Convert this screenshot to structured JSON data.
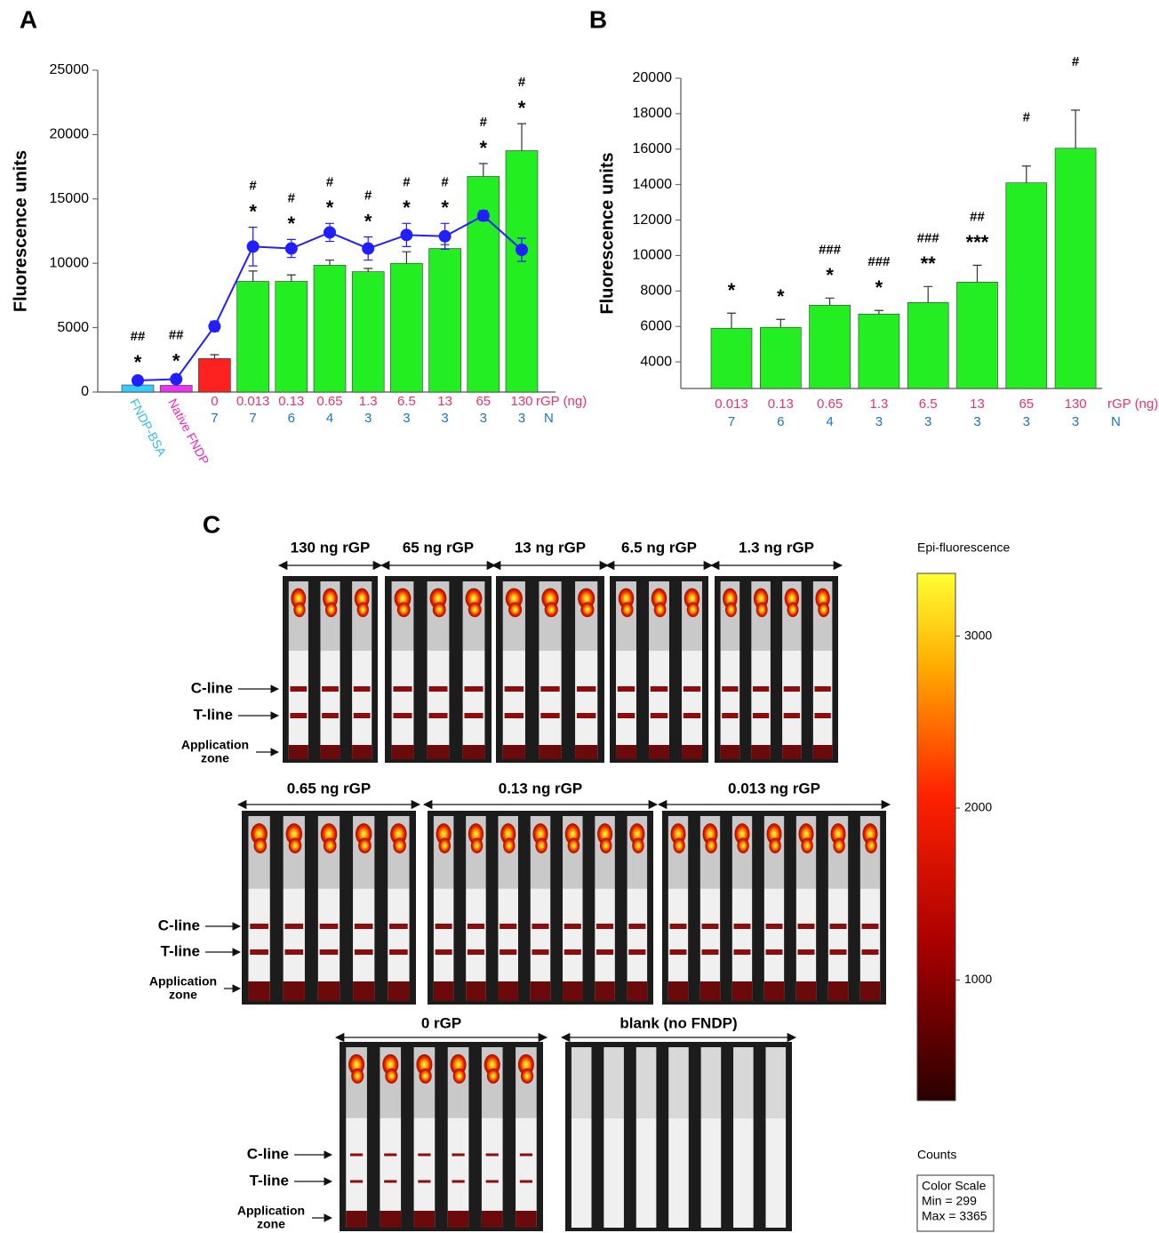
{
  "chart_data": [
    {
      "type": "bar",
      "panel_label": "A",
      "ylabel": "Fluorescence units",
      "categories": [
        "FNDP-BSA",
        "Native FNDP",
        "0",
        "0.013",
        "0.13",
        "0.65",
        "1.3",
        "6.5",
        "13",
        "65",
        "130"
      ],
      "category_colors": [
        "#33bbee",
        "#ee22cc",
        "#e8336b",
        "#e8336b",
        "#e8336b",
        "#e8336b",
        "#e8336b",
        "#e8336b",
        "#e8336b",
        "#e8336b",
        "#e8336b"
      ],
      "x_unit_label": "rGP (ng)",
      "n_label": "N",
      "n_values": [
        null,
        null,
        7,
        7,
        6,
        4,
        3,
        3,
        3,
        3,
        3
      ],
      "n_color": "#1a74c4",
      "series": [
        {
          "type": "bar",
          "colors": [
            "#33ccff",
            "#ee33ee",
            "#ff2020",
            "#22ee22",
            "#22ee22",
            "#22ee22",
            "#22ee22",
            "#22ee22",
            "#22ee22",
            "#22ee22",
            "#22ee22"
          ],
          "values": [
            550,
            520,
            2600,
            8600,
            8600,
            9850,
            9350,
            10000,
            11150,
            16750,
            18750
          ],
          "errors": [
            null,
            null,
            300,
            800,
            500,
            400,
            250,
            900,
            300,
            1000,
            2100
          ]
        },
        {
          "type": "line",
          "color": "#1f1fff",
          "values": [
            900,
            1000,
            5100,
            11300,
            11150,
            12400,
            11150,
            12200,
            12100,
            13700,
            11050
          ],
          "errors": [
            200,
            200,
            400,
            1500,
            700,
            700,
            900,
            900,
            1000,
            400,
            900
          ]
        }
      ],
      "annotations": {
        "stars": [
          "*",
          "*",
          null,
          "*",
          "*",
          "*",
          "*",
          "*",
          "*",
          "*",
          "*"
        ],
        "hashes": [
          "##",
          "##",
          null,
          "#",
          "#",
          "#",
          "#",
          "#",
          "#",
          "#",
          "#"
        ]
      },
      "ylim": [
        0,
        25000
      ],
      "yticks": [
        0,
        5000,
        10000,
        15000,
        20000,
        25000
      ]
    },
    {
      "type": "bar",
      "panel_label": "B",
      "ylabel": "Fluorescence units",
      "categories": [
        "0.013",
        "0.13",
        "0.65",
        "1.3",
        "6.5",
        "13",
        "65",
        "130"
      ],
      "category_colors": [
        "#e8336b",
        "#e8336b",
        "#e8336b",
        "#e8336b",
        "#e8336b",
        "#e8336b",
        "#e8336b",
        "#e8336b"
      ],
      "x_unit_label": "rGP (ng)",
      "n_label": "N",
      "n_values": [
        7,
        6,
        4,
        3,
        3,
        3,
        3,
        3
      ],
      "n_color": "#1a74c4",
      "series": [
        {
          "type": "bar",
          "colors": [
            "#22ee22",
            "#22ee22",
            "#22ee22",
            "#22ee22",
            "#22ee22",
            "#22ee22",
            "#22ee22",
            "#22ee22"
          ],
          "values": [
            5900,
            5950,
            7200,
            6700,
            7350,
            8500,
            14100,
            16050
          ],
          "errors": [
            850,
            450,
            400,
            200,
            900,
            950,
            950,
            2150
          ]
        }
      ],
      "annotations": {
        "stars": [
          "*",
          "*",
          "*",
          "*",
          "**",
          "***",
          null,
          null
        ],
        "hashes": [
          null,
          null,
          "###",
          "###",
          "###",
          "##",
          "#",
          "#"
        ]
      },
      "ylim": [
        2500,
        20000
      ],
      "yticks": [
        4000,
        6000,
        8000,
        10000,
        12000,
        14000,
        16000,
        18000,
        20000
      ]
    }
  ],
  "panel_c": {
    "panel_label": "C",
    "groups": [
      {
        "title": "130 ng rGP"
      },
      {
        "title": "65 ng rGP"
      },
      {
        "title": "13 ng rGP"
      },
      {
        "title": "6.5 ng rGP"
      },
      {
        "title": "1.3 ng rGP"
      },
      {
        "title": "0.65 ng rGP"
      },
      {
        "title": "0.13 ng  rGP"
      },
      {
        "title": "0.013 ng rGP"
      },
      {
        "title": "0 rGP"
      },
      {
        "title": "blank (no FNDP)"
      }
    ],
    "row_labels": [
      {
        "c_line": "C-line",
        "t_line": "T-line",
        "application_zone": [
          "Application",
          "zone"
        ]
      },
      {
        "c_line": "C-line",
        "t_line": "T-line",
        "application_zone": [
          "Application",
          "zone"
        ]
      },
      {
        "c_line": "C-line",
        "t_line": "T-line",
        "application_zone": [
          "Application",
          "zone"
        ]
      }
    ],
    "color_scale": {
      "title": "Epi-fluorescence",
      "unit_label": "Counts",
      "box": [
        "Color Scale",
        "Min = 299",
        "Max = 3365"
      ],
      "clim": [
        299,
        3365
      ],
      "ticks": [
        1000,
        2000,
        3000
      ]
    }
  }
}
